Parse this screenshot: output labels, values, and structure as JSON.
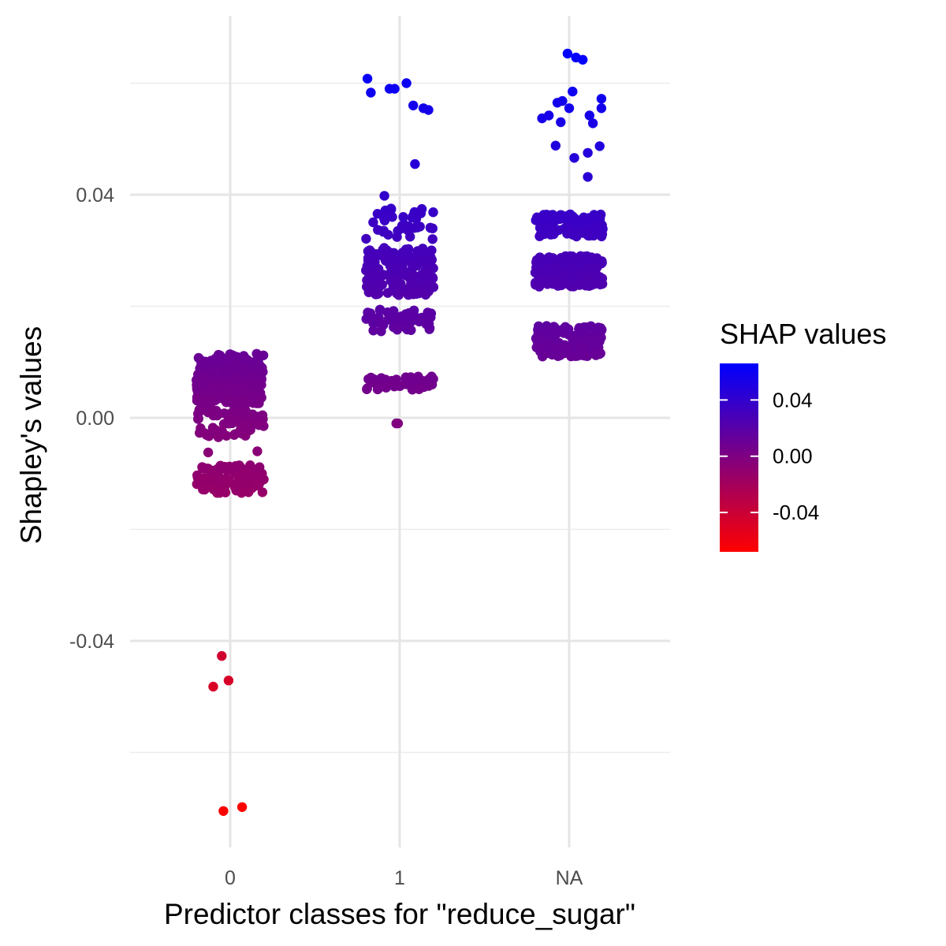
{
  "chart_data": {
    "type": "scatter",
    "xlabel": "Predictor classes for \"reduce_sugar\"",
    "ylabel": "Shapley's values",
    "categories": [
      "0",
      "1",
      "NA"
    ],
    "ylim": [
      -0.076,
      0.067
    ],
    "y_ticks": [
      -0.04,
      0.0,
      0.04
    ],
    "y_tick_labels": [
      "-0.04",
      "0.00",
      "0.04"
    ],
    "grid": true,
    "jitter_width": 0.2,
    "color_scale": {
      "title": "SHAP values",
      "low": "#ff0000",
      "high": "#0000ff",
      "limits": [
        -0.068,
        0.066
      ],
      "breaks": [
        0.04,
        0.0,
        -0.04
      ],
      "break_labels": [
        "0.04",
        "0.00",
        "-0.04"
      ]
    },
    "legend_position": "right",
    "bands": [
      {
        "category": "0",
        "ymin": -0.0135,
        "ymax": -0.0085,
        "count": 110
      },
      {
        "category": "0",
        "ymin": -0.0035,
        "ymax": 0.0015,
        "count": 70
      },
      {
        "category": "0",
        "ymin": 0.0025,
        "ymax": 0.0115,
        "count": 230
      },
      {
        "category": "1",
        "ymin": 0.005,
        "ymax": 0.0075,
        "count": 45
      },
      {
        "category": "1",
        "ymin": 0.0155,
        "ymax": 0.0195,
        "count": 60
      },
      {
        "category": "1",
        "ymin": 0.022,
        "ymax": 0.0305,
        "count": 200
      },
      {
        "category": "1",
        "ymin": 0.032,
        "ymax": 0.038,
        "count": 40
      },
      {
        "category": "NA",
        "ymin": 0.011,
        "ymax": 0.0165,
        "count": 140
      },
      {
        "category": "NA",
        "ymin": 0.0235,
        "ymax": 0.029,
        "count": 230
      },
      {
        "category": "NA",
        "ymin": 0.0325,
        "ymax": 0.0365,
        "count": 110
      }
    ],
    "points": [
      {
        "category": "0",
        "offset": -0.05,
        "y": -0.0427
      },
      {
        "category": "0",
        "offset": -0.1,
        "y": -0.0482
      },
      {
        "category": "0",
        "offset": -0.01,
        "y": -0.0471
      },
      {
        "category": "0",
        "offset": -0.04,
        "y": -0.0705
      },
      {
        "category": "0",
        "offset": 0.07,
        "y": -0.0698
      },
      {
        "category": "0",
        "offset": -0.13,
        "y": -0.0062
      },
      {
        "category": "0",
        "offset": 0.16,
        "y": -0.006
      },
      {
        "category": "1",
        "offset": -0.02,
        "y": -0.001
      },
      {
        "category": "1",
        "offset": -0.01,
        "y": -0.001
      },
      {
        "category": "1",
        "offset": -0.09,
        "y": 0.0398
      },
      {
        "category": "1",
        "offset": 0.09,
        "y": 0.0455
      },
      {
        "category": "1",
        "offset": -0.19,
        "y": 0.0608
      },
      {
        "category": "1",
        "offset": -0.17,
        "y": 0.0583
      },
      {
        "category": "1",
        "offset": -0.06,
        "y": 0.059
      },
      {
        "category": "1",
        "offset": -0.03,
        "y": 0.059
      },
      {
        "category": "1",
        "offset": 0.04,
        "y": 0.06
      },
      {
        "category": "1",
        "offset": 0.08,
        "y": 0.056
      },
      {
        "category": "1",
        "offset": 0.14,
        "y": 0.0555
      },
      {
        "category": "1",
        "offset": 0.17,
        "y": 0.0552
      },
      {
        "category": "NA",
        "offset": -0.01,
        "y": 0.0653
      },
      {
        "category": "NA",
        "offset": 0.04,
        "y": 0.0646
      },
      {
        "category": "NA",
        "offset": 0.08,
        "y": 0.0642
      },
      {
        "category": "NA",
        "offset": 0.02,
        "y": 0.0585
      },
      {
        "category": "NA",
        "offset": -0.07,
        "y": 0.0565
      },
      {
        "category": "NA",
        "offset": -0.04,
        "y": 0.0568
      },
      {
        "category": "NA",
        "offset": 0.0,
        "y": 0.0555
      },
      {
        "category": "NA",
        "offset": -0.16,
        "y": 0.0537
      },
      {
        "category": "NA",
        "offset": -0.12,
        "y": 0.0542
      },
      {
        "category": "NA",
        "offset": -0.05,
        "y": 0.053
      },
      {
        "category": "NA",
        "offset": 0.12,
        "y": 0.0542
      },
      {
        "category": "NA",
        "offset": 0.14,
        "y": 0.0528
      },
      {
        "category": "NA",
        "offset": 0.19,
        "y": 0.0572
      },
      {
        "category": "NA",
        "offset": 0.19,
        "y": 0.0555
      },
      {
        "category": "NA",
        "offset": -0.08,
        "y": 0.0488
      },
      {
        "category": "NA",
        "offset": 0.03,
        "y": 0.0466
      },
      {
        "category": "NA",
        "offset": 0.11,
        "y": 0.0475
      },
      {
        "category": "NA",
        "offset": 0.18,
        "y": 0.0487
      },
      {
        "category": "NA",
        "offset": 0.11,
        "y": 0.0432
      }
    ]
  }
}
